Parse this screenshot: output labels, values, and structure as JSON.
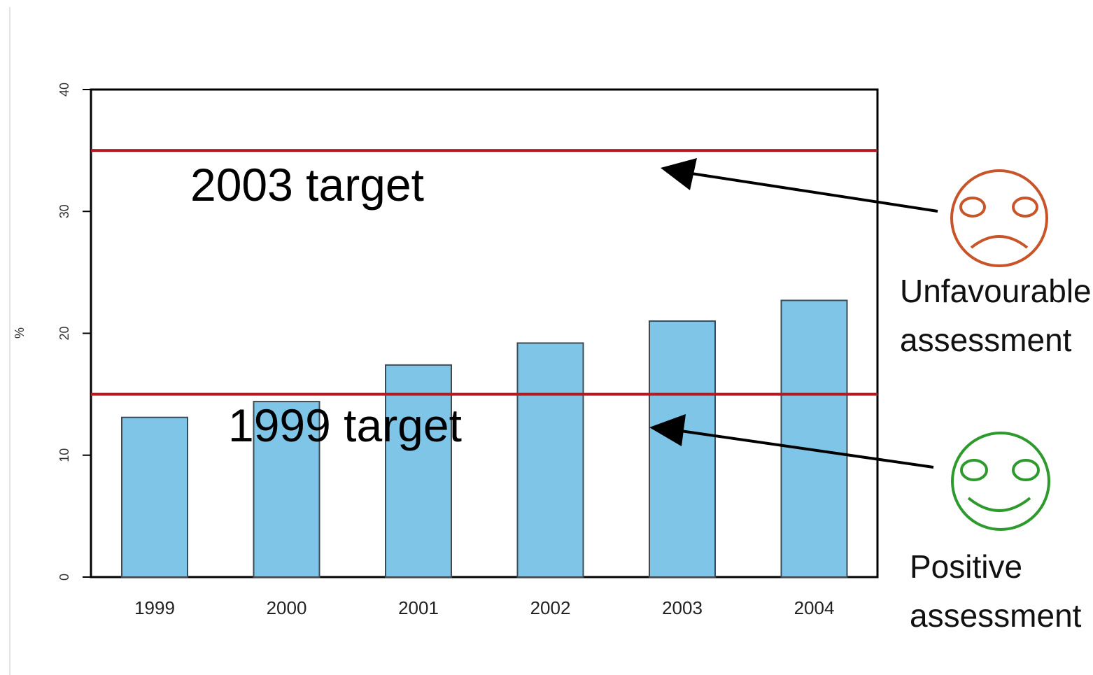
{
  "chart_data": {
    "type": "bar",
    "categories": [
      "1999",
      "2000",
      "2001",
      "2002",
      "2003",
      "2004"
    ],
    "values": [
      13.1,
      14.4,
      17.4,
      19.2,
      21.0,
      22.7
    ],
    "ylabel": "%",
    "ylim": [
      0,
      40
    ],
    "yticks": [
      "0",
      "10",
      "20",
      "30",
      "40"
    ],
    "grid": false,
    "bar_color": "#7ec5e7",
    "reference_lines": [
      {
        "label": "2003 target",
        "value": 35,
        "color": "#b01c22"
      },
      {
        "label": "1999 target",
        "value": 15,
        "color": "#b01c22"
      }
    ]
  },
  "annotations": {
    "unfavourable": {
      "line1": "Unfavourable",
      "line2": "assessment",
      "icon": "sad-face-icon",
      "color": "#c8552a"
    },
    "positive": {
      "line1": "Positive",
      "line2": "assessment",
      "icon": "smiley-face-icon",
      "color": "#2e9a2e"
    }
  }
}
